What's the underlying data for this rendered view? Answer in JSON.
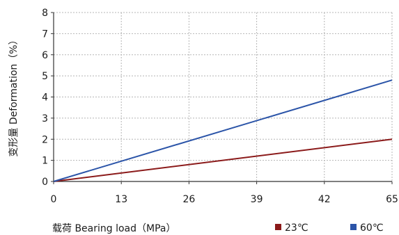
{
  "chart_data": {
    "type": "line",
    "title": "",
    "xlabel": "载荷 Bearing load（MPa）",
    "ylabel": "变形量 Deformation（%）",
    "x_ticks": [
      "0",
      "13",
      "26",
      "39",
      "42",
      "65"
    ],
    "y_ticks": [
      "0",
      "1",
      "2",
      "3",
      "4",
      "5",
      "6",
      "7",
      "8"
    ],
    "ylim": [
      0,
      8
    ],
    "grid": true,
    "legend_position": "bottom-right",
    "series": [
      {
        "name": "23℃",
        "color": "#8b1a1a",
        "x": [
          0,
          65
        ],
        "y": [
          0,
          2.0
        ]
      },
      {
        "name": "60℃",
        "color": "#2b54a8",
        "x": [
          0,
          65
        ],
        "y": [
          0,
          4.8
        ]
      }
    ]
  }
}
